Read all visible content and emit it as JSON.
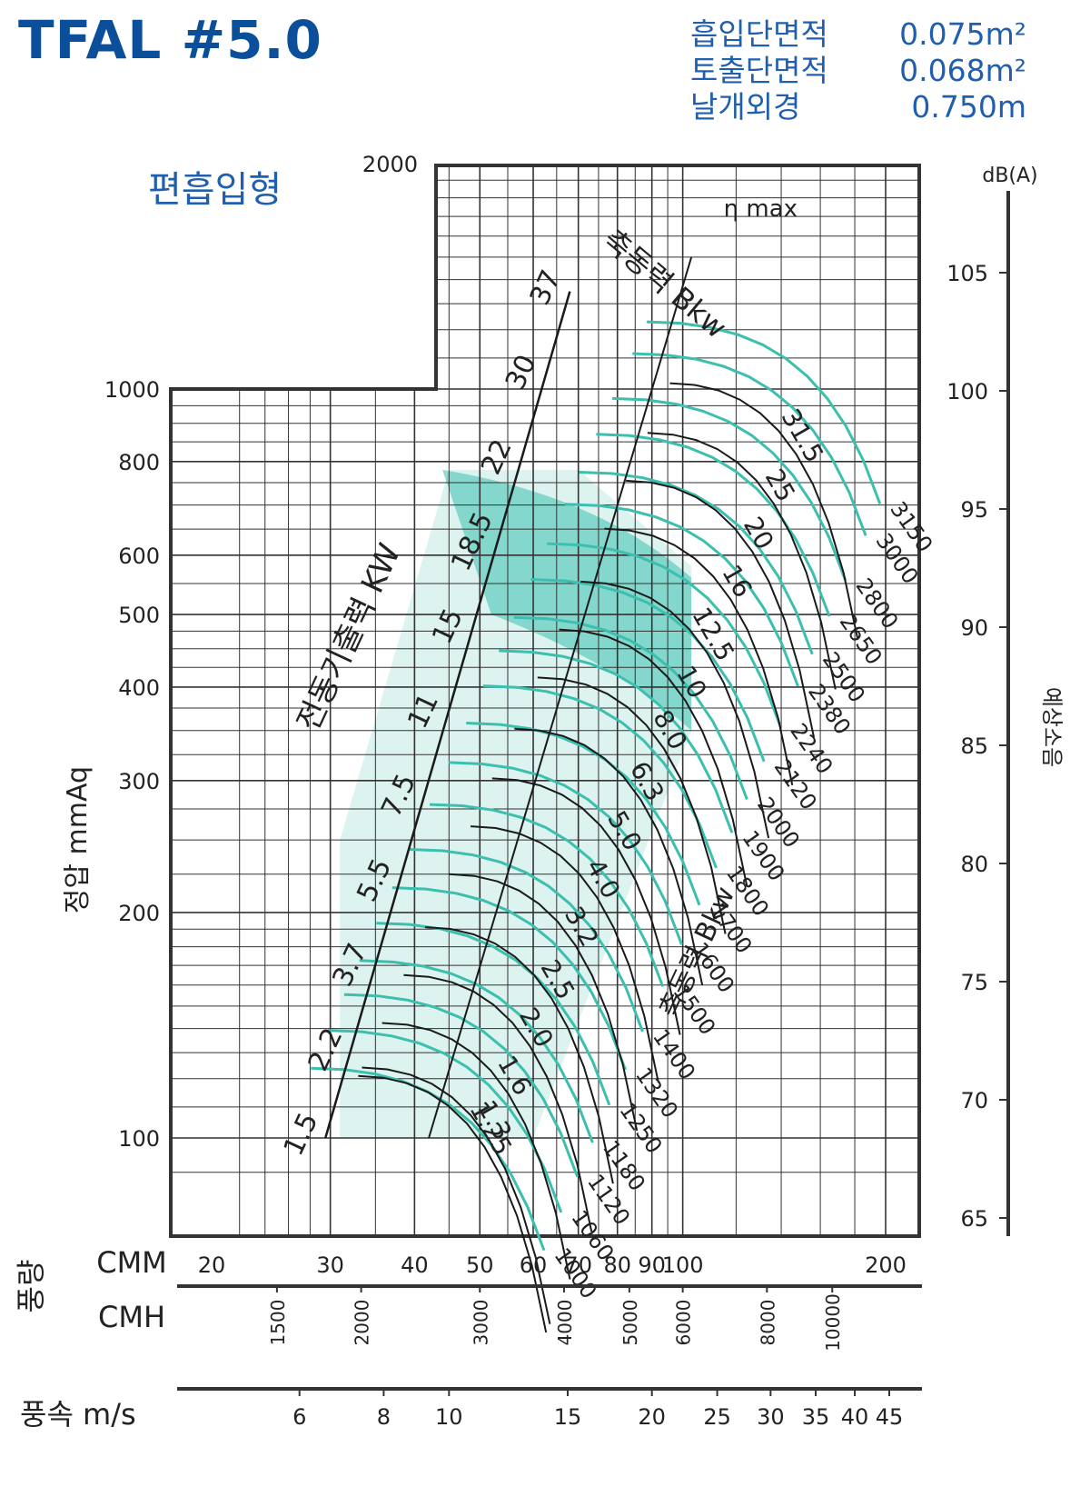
{
  "header": {
    "model": "TFAL #5.0",
    "specs": [
      {
        "label": "흡입단면적",
        "value": "0.075m²"
      },
      {
        "label": "토출단면적",
        "value": "0.068m²"
      },
      {
        "label": "날개외경",
        "value": "0.750m"
      }
    ],
    "subtitle": "편흡입형"
  },
  "colors": {
    "grid": "#333333",
    "teal": "#3cbfae",
    "fill": "#bfe9e2",
    "curve": "#1a1a1a",
    "title": "#0b4f9a",
    "spec": "#1f5fae"
  },
  "chart_data": {
    "type": "line",
    "scale": "log-log",
    "y_axis": {
      "label": "정압 mmAq",
      "ticks": [
        100,
        200,
        300,
        400,
        500,
        600,
        800,
        1000,
        2000
      ],
      "range": [
        80,
        2000
      ]
    },
    "x_axis": {
      "cmm": {
        "label": "CMM",
        "ticks": [
          20,
          30,
          40,
          50,
          60,
          70,
          80,
          90,
          100,
          200
        ],
        "range": [
          17,
          220
        ]
      },
      "cmh": {
        "label": "CMH",
        "ticks": [
          1500,
          2000,
          3000,
          4000,
          5000,
          6000,
          8000,
          10000
        ]
      },
      "velocity": {
        "label": "풍속 m/s",
        "ticks": [
          6,
          8,
          10,
          15,
          20,
          25,
          30,
          35,
          40,
          45
        ]
      },
      "group_label": "풍량"
    },
    "noise_axis": {
      "unit": "dB(A)",
      "label": "예상소음",
      "ticks": [
        65,
        70,
        75,
        80,
        85,
        90,
        95,
        100,
        105
      ]
    },
    "motor_output_kw": {
      "label": "전동기출력 KW",
      "values": [
        "1.5",
        "2.2",
        "3.7",
        "5.5",
        "7.5",
        "11",
        "15",
        "18.5",
        "22",
        "30",
        "37"
      ]
    },
    "shaft_power_bkw": {
      "label": "축동력 Bkw",
      "values": [
        "1.25",
        "1.3",
        "1.6",
        "2.0",
        "2.5",
        "3.2",
        "4.0",
        "5.0",
        "6.3",
        "8.0",
        "10",
        "12.5",
        "16",
        "20",
        "25",
        "31.5"
      ]
    },
    "rpm_curves": {
      "label": "축동력 Bkw",
      "values": [
        "1000",
        "1060",
        "1120",
        "1180",
        "1250",
        "1320",
        "1400",
        "1500",
        "1600",
        "1700",
        "1800",
        "1900",
        "2000",
        "2120",
        "2240",
        "2380",
        "2500",
        "2650",
        "2800",
        "3000",
        "3150"
      ]
    },
    "eta_max_label": "η max",
    "operating_region": {
      "lower_left_cmm": 31,
      "lower_right_cmm": 60,
      "upper_right_cmm": 103
    }
  }
}
